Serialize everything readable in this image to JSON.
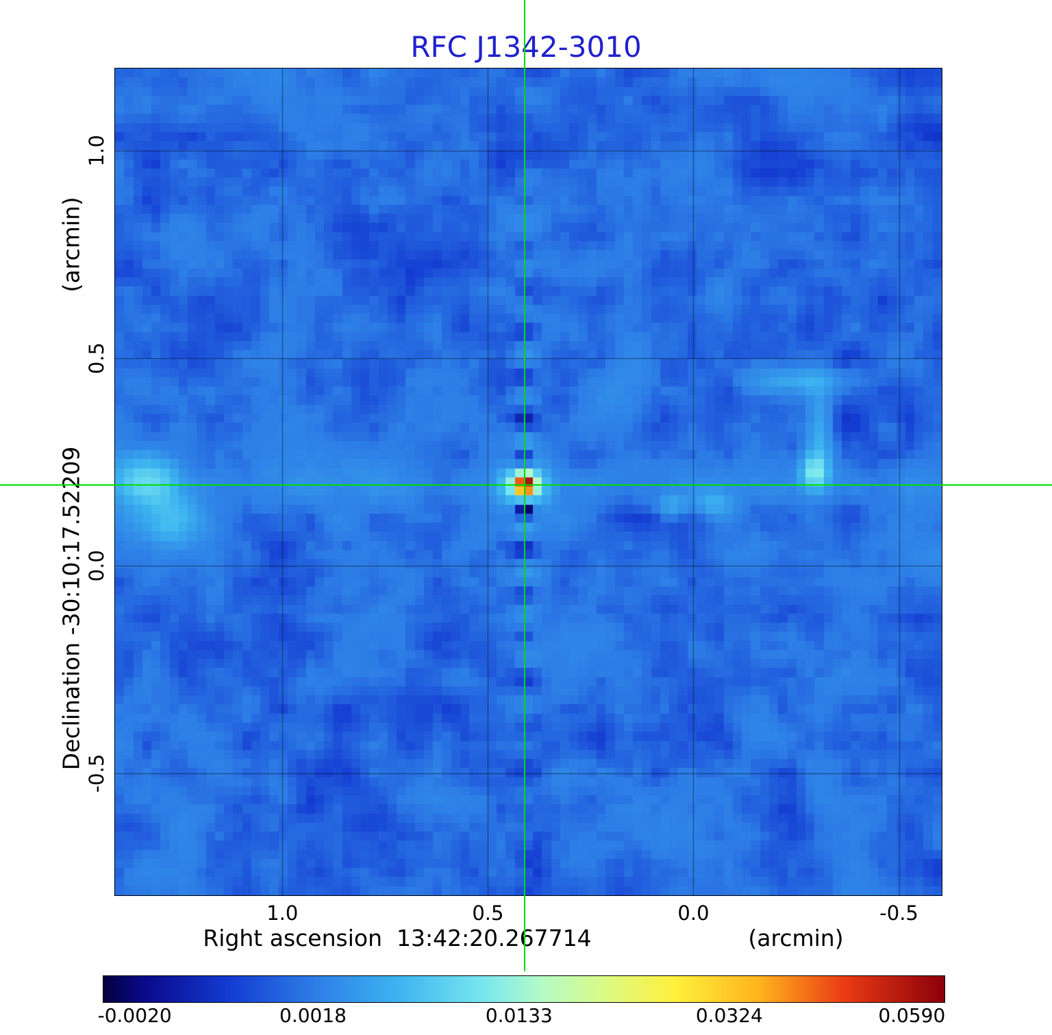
{
  "title": "RFC J1342-3010",
  "title_color": "#2121cd",
  "axes": {
    "y_unit_label": "(arcmin)",
    "y_axis_label": "Declination  -30:10:17.52209",
    "x_axis_label": "Right ascension  13:42:20.267714",
    "x_unit_label": "(arcmin)",
    "x_ticks": [
      "1.0",
      "0.5",
      "0.0",
      "-0.5"
    ],
    "y_ticks": [
      "1.0",
      "0.5",
      "0.0",
      "-0.5"
    ]
  },
  "chart_data": {
    "type": "heatmap",
    "title": "RFC J1342-3010",
    "xlabel": "Right ascension 13:42:20.267714 (arcmin)",
    "ylabel": "Declination -30:10:17.52209 (arcmin)",
    "x_left": 1.407,
    "x_right": -0.604,
    "y_top": 1.198,
    "y_bottom": -0.794,
    "x_tick_values": [
      1.0,
      0.5,
      0.0,
      -0.5
    ],
    "y_tick_values": [
      1.0,
      0.5,
      0.0,
      -0.5
    ],
    "grid": true,
    "pixels": 91,
    "background_level": 0.0013,
    "crosshair": {
      "x": 0.41,
      "y": 0.195,
      "color": "#00dd00"
    },
    "noise": {
      "seed": 42,
      "octaves": [
        {
          "scale": 9,
          "amp": 0.0007
        },
        {
          "scale": 3.5,
          "amp": 0.0007
        },
        {
          "scale": 1.4,
          "amp": 0.00045
        }
      ]
    },
    "features": [
      {
        "name": "core",
        "x": 0.41,
        "y": 0.195,
        "sx": 0.013,
        "sy": 0.013,
        "amp": 0.058
      },
      {
        "name": "core-halo",
        "x": 0.41,
        "y": 0.195,
        "sx": 0.034,
        "sy": 0.034,
        "amp": 0.011
      },
      {
        "name": "negative-below",
        "x": 0.41,
        "y": 0.132,
        "sx": 0.015,
        "sy": 0.013,
        "amp": -0.0062
      },
      {
        "name": "negative-above",
        "x": 0.41,
        "y": 0.262,
        "sx": 0.015,
        "sy": 0.015,
        "amp": -0.0035
      },
      {
        "name": "left-diffuse-1",
        "x": 1.33,
        "y": 0.205,
        "sx": 0.055,
        "sy": 0.042,
        "amp": 0.0075
      },
      {
        "name": "left-diffuse-2",
        "x": 1.27,
        "y": 0.105,
        "sx": 0.06,
        "sy": 0.05,
        "amp": 0.0058
      },
      {
        "name": "right-arc-top",
        "x": -0.25,
        "y": 0.445,
        "sx": 0.09,
        "sy": 0.024,
        "amp": 0.005
      },
      {
        "name": "right-arc-side",
        "x": -0.305,
        "y": 0.33,
        "sx": 0.022,
        "sy": 0.075,
        "amp": 0.0045
      },
      {
        "name": "right-spot",
        "x": -0.295,
        "y": 0.225,
        "sx": 0.024,
        "sy": 0.03,
        "amp": 0.0085
      },
      {
        "name": "small-blob-east",
        "x": 0.05,
        "y": 0.145,
        "sx": 0.026,
        "sy": 0.02,
        "amp": 0.004
      },
      {
        "name": "small-blob-west",
        "x": -0.05,
        "y": 0.148,
        "sx": 0.03,
        "sy": 0.02,
        "amp": 0.0042
      }
    ],
    "artifacts": {
      "vertical_stripes": {
        "x": 0.41,
        "y": 0.195,
        "amp": 0.0035,
        "width": 0.022,
        "period": 0.105,
        "extent": 0.4
      },
      "horizontal_band": {
        "y": 0.195,
        "amp": 0.0012,
        "width": 0.035
      },
      "diagonal_streaks": {
        "x": 0.41,
        "y": 0.195,
        "amp": 0.0009,
        "width": 0.03,
        "extent": 0.9
      }
    },
    "colormap": [
      [
        0.0,
        "#050040"
      ],
      [
        0.05,
        "#0a0a8c"
      ],
      [
        0.15,
        "#143cd2"
      ],
      [
        0.25,
        "#2d7de6"
      ],
      [
        0.35,
        "#3cb4f0"
      ],
      [
        0.45,
        "#78e6f0"
      ],
      [
        0.52,
        "#b4fac8"
      ],
      [
        0.6,
        "#dcfa82"
      ],
      [
        0.68,
        "#fff03c"
      ],
      [
        0.78,
        "#ffb41e"
      ],
      [
        0.88,
        "#eb3c14"
      ],
      [
        1.0,
        "#8c000a"
      ]
    ],
    "scale_anchors": [
      [
        -0.004,
        0.0
      ],
      [
        -0.002,
        0.038
      ],
      [
        0.0018,
        0.25
      ],
      [
        0.0133,
        0.495
      ],
      [
        0.0324,
        0.745
      ],
      [
        0.059,
        0.962
      ],
      [
        0.0645,
        1.0
      ]
    ],
    "colorbar": {
      "tick_labels": [
        "-0.0020",
        "0.0018",
        "0.0133",
        "0.0324",
        "0.0590"
      ],
      "tick_values": [
        -0.002,
        0.0018,
        0.0133,
        0.0324,
        0.059
      ],
      "min": -0.004,
      "max": 0.0645
    }
  }
}
